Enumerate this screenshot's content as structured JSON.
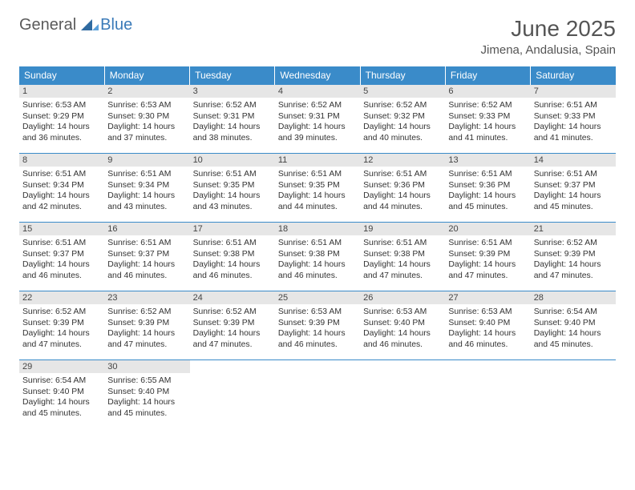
{
  "logo": {
    "general": "General",
    "blue": "Blue"
  },
  "title": "June 2025",
  "location": "Jimena, Andalusia, Spain",
  "colors": {
    "header_bg": "#3a8bc9",
    "header_text": "#ffffff",
    "daynum_bg": "#e6e6e6",
    "rule": "#3a8bc9"
  },
  "daysOfWeek": [
    "Sunday",
    "Monday",
    "Tuesday",
    "Wednesday",
    "Thursday",
    "Friday",
    "Saturday"
  ],
  "weeks": [
    [
      {
        "n": "1",
        "sr": "Sunrise: 6:53 AM",
        "ss": "Sunset: 9:29 PM",
        "dl": "Daylight: 14 hours and 36 minutes."
      },
      {
        "n": "2",
        "sr": "Sunrise: 6:53 AM",
        "ss": "Sunset: 9:30 PM",
        "dl": "Daylight: 14 hours and 37 minutes."
      },
      {
        "n": "3",
        "sr": "Sunrise: 6:52 AM",
        "ss": "Sunset: 9:31 PM",
        "dl": "Daylight: 14 hours and 38 minutes."
      },
      {
        "n": "4",
        "sr": "Sunrise: 6:52 AM",
        "ss": "Sunset: 9:31 PM",
        "dl": "Daylight: 14 hours and 39 minutes."
      },
      {
        "n": "5",
        "sr": "Sunrise: 6:52 AM",
        "ss": "Sunset: 9:32 PM",
        "dl": "Daylight: 14 hours and 40 minutes."
      },
      {
        "n": "6",
        "sr": "Sunrise: 6:52 AM",
        "ss": "Sunset: 9:33 PM",
        "dl": "Daylight: 14 hours and 41 minutes."
      },
      {
        "n": "7",
        "sr": "Sunrise: 6:51 AM",
        "ss": "Sunset: 9:33 PM",
        "dl": "Daylight: 14 hours and 41 minutes."
      }
    ],
    [
      {
        "n": "8",
        "sr": "Sunrise: 6:51 AM",
        "ss": "Sunset: 9:34 PM",
        "dl": "Daylight: 14 hours and 42 minutes."
      },
      {
        "n": "9",
        "sr": "Sunrise: 6:51 AM",
        "ss": "Sunset: 9:34 PM",
        "dl": "Daylight: 14 hours and 43 minutes."
      },
      {
        "n": "10",
        "sr": "Sunrise: 6:51 AM",
        "ss": "Sunset: 9:35 PM",
        "dl": "Daylight: 14 hours and 43 minutes."
      },
      {
        "n": "11",
        "sr": "Sunrise: 6:51 AM",
        "ss": "Sunset: 9:35 PM",
        "dl": "Daylight: 14 hours and 44 minutes."
      },
      {
        "n": "12",
        "sr": "Sunrise: 6:51 AM",
        "ss": "Sunset: 9:36 PM",
        "dl": "Daylight: 14 hours and 44 minutes."
      },
      {
        "n": "13",
        "sr": "Sunrise: 6:51 AM",
        "ss": "Sunset: 9:36 PM",
        "dl": "Daylight: 14 hours and 45 minutes."
      },
      {
        "n": "14",
        "sr": "Sunrise: 6:51 AM",
        "ss": "Sunset: 9:37 PM",
        "dl": "Daylight: 14 hours and 45 minutes."
      }
    ],
    [
      {
        "n": "15",
        "sr": "Sunrise: 6:51 AM",
        "ss": "Sunset: 9:37 PM",
        "dl": "Daylight: 14 hours and 46 minutes."
      },
      {
        "n": "16",
        "sr": "Sunrise: 6:51 AM",
        "ss": "Sunset: 9:37 PM",
        "dl": "Daylight: 14 hours and 46 minutes."
      },
      {
        "n": "17",
        "sr": "Sunrise: 6:51 AM",
        "ss": "Sunset: 9:38 PM",
        "dl": "Daylight: 14 hours and 46 minutes."
      },
      {
        "n": "18",
        "sr": "Sunrise: 6:51 AM",
        "ss": "Sunset: 9:38 PM",
        "dl": "Daylight: 14 hours and 46 minutes."
      },
      {
        "n": "19",
        "sr": "Sunrise: 6:51 AM",
        "ss": "Sunset: 9:38 PM",
        "dl": "Daylight: 14 hours and 47 minutes."
      },
      {
        "n": "20",
        "sr": "Sunrise: 6:51 AM",
        "ss": "Sunset: 9:39 PM",
        "dl": "Daylight: 14 hours and 47 minutes."
      },
      {
        "n": "21",
        "sr": "Sunrise: 6:52 AM",
        "ss": "Sunset: 9:39 PM",
        "dl": "Daylight: 14 hours and 47 minutes."
      }
    ],
    [
      {
        "n": "22",
        "sr": "Sunrise: 6:52 AM",
        "ss": "Sunset: 9:39 PM",
        "dl": "Daylight: 14 hours and 47 minutes."
      },
      {
        "n": "23",
        "sr": "Sunrise: 6:52 AM",
        "ss": "Sunset: 9:39 PM",
        "dl": "Daylight: 14 hours and 47 minutes."
      },
      {
        "n": "24",
        "sr": "Sunrise: 6:52 AM",
        "ss": "Sunset: 9:39 PM",
        "dl": "Daylight: 14 hours and 47 minutes."
      },
      {
        "n": "25",
        "sr": "Sunrise: 6:53 AM",
        "ss": "Sunset: 9:39 PM",
        "dl": "Daylight: 14 hours and 46 minutes."
      },
      {
        "n": "26",
        "sr": "Sunrise: 6:53 AM",
        "ss": "Sunset: 9:40 PM",
        "dl": "Daylight: 14 hours and 46 minutes."
      },
      {
        "n": "27",
        "sr": "Sunrise: 6:53 AM",
        "ss": "Sunset: 9:40 PM",
        "dl": "Daylight: 14 hours and 46 minutes."
      },
      {
        "n": "28",
        "sr": "Sunrise: 6:54 AM",
        "ss": "Sunset: 9:40 PM",
        "dl": "Daylight: 14 hours and 45 minutes."
      }
    ],
    [
      {
        "n": "29",
        "sr": "Sunrise: 6:54 AM",
        "ss": "Sunset: 9:40 PM",
        "dl": "Daylight: 14 hours and 45 minutes."
      },
      {
        "n": "30",
        "sr": "Sunrise: 6:55 AM",
        "ss": "Sunset: 9:40 PM",
        "dl": "Daylight: 14 hours and 45 minutes."
      },
      null,
      null,
      null,
      null,
      null
    ]
  ]
}
